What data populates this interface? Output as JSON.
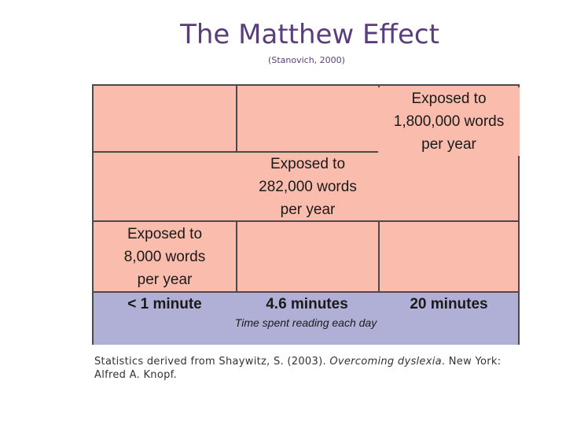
{
  "title": "The Matthew Effect",
  "subtitle": "(Stanovich, 2000)",
  "cells": [
    {
      "line1": "Exposed to",
      "line2_number": "1,800,000",
      "line2_rest": " words",
      "line3": "per year"
    },
    {
      "line1": "Exposed to",
      "line2_number": "282,000",
      "line2_rest": " words",
      "line3": "per year"
    },
    {
      "line1": "Exposed to",
      "line2_number": "8,000",
      "line2_rest": " words",
      "line3": "per year"
    }
  ],
  "x_categories": [
    "< 1 minute",
    "4.6 minutes",
    "20 minutes"
  ],
  "x_axis_title": "Time spent reading each day",
  "citation": {
    "prefix": "Statistics derived from Shaywitz, S. (2003). ",
    "book": "Overcoming dyslexia",
    "suffix": ". New York: Alfred A. Knopf."
  },
  "colors": {
    "title": "#5a3e7a",
    "grid_fill": "#f9bcad",
    "axis_band": "#b0b0d6",
    "grid_lines": "#4a4a4a"
  }
}
